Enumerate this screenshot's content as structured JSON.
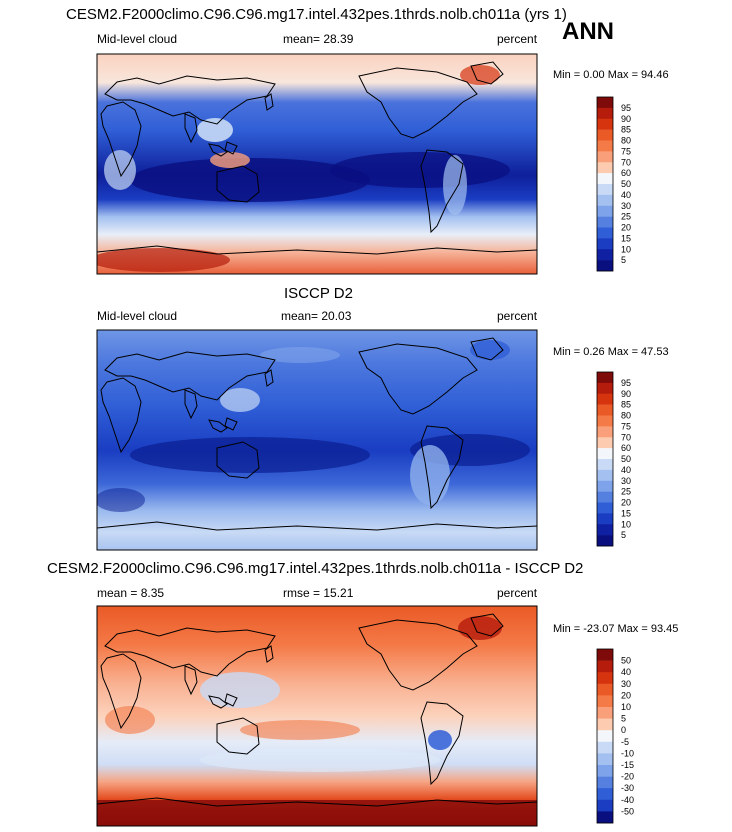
{
  "season": "ANN",
  "chart_data": [
    {
      "type": "heatmap",
      "title": "CESM2.F2000climo.C96.C96.mg17.intel.432pes.1thrds.nolb.ch011a (yrs 1)",
      "left_label": "Mid-level cloud",
      "center_label": "mean=  28.39",
      "right_label": "percent",
      "mean": 28.39,
      "minmax_text": "Min =   0.00 Max =  94.46",
      "min": 0.0,
      "max": 94.46,
      "colorbar": {
        "levels": [
          "95",
          "90",
          "85",
          "80",
          "75",
          "70",
          "60",
          "50",
          "40",
          "30",
          "25",
          "20",
          "15",
          "10",
          "5"
        ],
        "colors": [
          "#7f0a0a",
          "#b51c0c",
          "#d6330f",
          "#ea5a26",
          "#f47a48",
          "#f9a07a",
          "#fccbb0",
          "#f3f6fb",
          "#c8daf5",
          "#a3c0f0",
          "#7ea3ea",
          "#5580e0",
          "#2f5ed6",
          "#1a3dc2",
          "#1020a2",
          "#0a0f80"
        ]
      }
    },
    {
      "type": "heatmap",
      "title": "ISCCP D2",
      "left_label": "Mid-level cloud",
      "center_label": "mean=  20.03",
      "right_label": "percent",
      "mean": 20.03,
      "minmax_text": "Min =   0.26 Max =  47.53",
      "min": 0.26,
      "max": 47.53,
      "colorbar": {
        "levels": [
          "95",
          "90",
          "85",
          "80",
          "75",
          "70",
          "60",
          "50",
          "40",
          "30",
          "25",
          "20",
          "15",
          "10",
          "5"
        ],
        "colors": [
          "#7f0a0a",
          "#b51c0c",
          "#d6330f",
          "#ea5a26",
          "#f47a48",
          "#f9a07a",
          "#fccbb0",
          "#f3f6fb",
          "#c8daf5",
          "#a3c0f0",
          "#7ea3ea",
          "#5580e0",
          "#2f5ed6",
          "#1a3dc2",
          "#1020a2",
          "#0a0f80"
        ]
      }
    },
    {
      "type": "heatmap",
      "title": "CESM2.F2000climo.C96.C96.mg17.intel.432pes.1thrds.nolb.ch011a - ISCCP D2",
      "left_label": "mean =   8.35",
      "center_label": "rmse =  15.21",
      "right_label": "percent",
      "mean": 8.35,
      "rmse": 15.21,
      "minmax_text": "Min = -23.07 Max =  93.45",
      "min": -23.07,
      "max": 93.45,
      "colorbar": {
        "levels": [
          "50",
          "40",
          "30",
          "20",
          "10",
          "5",
          "0",
          "-5",
          "-10",
          "-15",
          "-20",
          "-30",
          "-40",
          "-50"
        ],
        "colors": [
          "#7f0a0a",
          "#b51c0c",
          "#d6330f",
          "#ea5a26",
          "#f47a48",
          "#f9a07a",
          "#fccbb0",
          "#f3f6fb",
          "#c8daf5",
          "#a3c0f0",
          "#7ea3ea",
          "#5580e0",
          "#2f5ed6",
          "#1a3dc2",
          "#0a0f80"
        ]
      }
    }
  ]
}
